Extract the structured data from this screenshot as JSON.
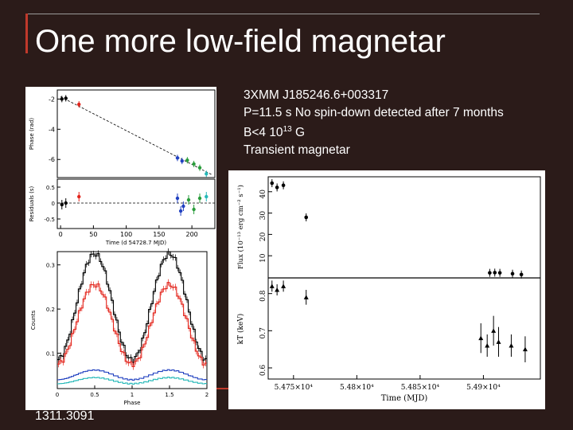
{
  "slide": {
    "title": "One more low-field magnetar",
    "info_lines": [
      "3XMM J185246.6+003317",
      "P=11.5 s No spin-down detected after 7 months",
      "B<4 10",
      "13",
      " G",
      "Transient magnetar"
    ],
    "reference": "1311.3091",
    "colors": {
      "background": "#2b1b19",
      "accent": "#c0392b",
      "text": "#ffffff"
    }
  },
  "chart_data": [
    {
      "type": "scatter",
      "panel": "timing",
      "ylabel_top": "Phase (rad)",
      "ylabel_bottom": "Residuals (s)",
      "xlabel": "Time (d    54728.7 MJD)",
      "x_ticks": [
        "0",
        "50",
        "100",
        "150",
        "200"
      ],
      "y_ticks_top": [
        "-2",
        "-4",
        "-6"
      ],
      "y_ticks_bottom": [
        "0.5",
        "0",
        "-0.5"
      ],
      "xlim": [
        -5,
        235
      ],
      "ylim_top": [
        -7.2,
        -1.4
      ],
      "ylim_bottom": [
        -0.8,
        0.75
      ],
      "trend_line": [
        [
          0,
          -1.85
        ],
        [
          230,
          -7.0
        ]
      ],
      "phase_series": [
        {
          "color": "#000000",
          "x": [
            2,
            8
          ],
          "y": [
            -2.0,
            -1.95
          ]
        },
        {
          "color": "#e3241b",
          "x": [
            28
          ],
          "y": [
            -2.35
          ]
        },
        {
          "color": "#2040c0",
          "x": [
            178,
            185
          ],
          "y": [
            -5.9,
            -6.1
          ]
        },
        {
          "color": "#2a9d3c",
          "x": [
            193,
            203,
            212
          ],
          "y": [
            -6.05,
            -6.3,
            -6.55
          ]
        },
        {
          "color": "#25b8b8",
          "x": [
            222
          ],
          "y": [
            -6.95
          ]
        }
      ],
      "residual_series": [
        {
          "color": "#000000",
          "x": [
            2,
            8
          ],
          "y": [
            -0.05,
            0.0
          ]
        },
        {
          "color": "#e3241b",
          "x": [
            28
          ],
          "y": [
            0.2
          ]
        },
        {
          "color": "#2040c0",
          "x": [
            178,
            183,
            187
          ],
          "y": [
            0.15,
            -0.25,
            -0.1
          ]
        },
        {
          "color": "#2a9d3c",
          "x": [
            195,
            203,
            212
          ],
          "y": [
            0.1,
            -0.2,
            0.15
          ]
        },
        {
          "color": "#25b8b8",
          "x": [
            222
          ],
          "y": [
            0.2
          ]
        }
      ]
    },
    {
      "type": "line",
      "panel": "pulse_profile",
      "xlabel": "Phase",
      "ylabel": "Counts",
      "x_ticks": [
        "0",
        "0.5",
        "1",
        "1.5",
        "2"
      ],
      "y_ticks": [
        "0.3",
        "0.2",
        "0.1"
      ],
      "xlim": [
        0,
        2
      ],
      "ylim": [
        0.02,
        0.33
      ],
      "series": [
        {
          "color": "#000000",
          "base": 0.085,
          "amp": 0.24
        },
        {
          "color": "#e3241b",
          "base": 0.075,
          "amp": 0.18
        },
        {
          "color": "#2040c0",
          "base": 0.04,
          "amp": 0.022
        },
        {
          "color": "#25b8b8",
          "base": 0.031,
          "amp": 0.014
        }
      ]
    },
    {
      "type": "scatter",
      "panel": "flux_kt",
      "xlabel": "Time (MJD)",
      "ylabel_top": "Flux (10⁻¹³ erg cm⁻² s⁻¹)",
      "ylabel_bottom": "kT (keV)",
      "x_ticks": [
        "5.475×10⁴",
        "5.48×10⁴",
        "5.485×10⁴",
        "5.49×10⁴"
      ],
      "x_tick_values": [
        54750,
        54800,
        54850,
        54900
      ],
      "y_ticks_top": [
        "40",
        "30",
        "20",
        "10"
      ],
      "y_ticks_bottom": [
        "0.8",
        "0.7",
        "0.6"
      ],
      "xlim": [
        54730,
        54945
      ],
      "ylim_top": [
        0,
        47
      ],
      "ylim_bottom": [
        0.57,
        0.84
      ],
      "flux": {
        "x": [
          54733,
          54737,
          54742,
          54760,
          54905,
          54909,
          54913,
          54923,
          54930
        ],
        "y": [
          44,
          42,
          43,
          28,
          2,
          2.1,
          2,
          1.6,
          1.2
        ]
      },
      "kt": {
        "x": [
          54733,
          54737,
          54742,
          54760,
          54898,
          54903,
          54908,
          54912,
          54922,
          54933
        ],
        "y": [
          0.82,
          0.81,
          0.82,
          0.79,
          0.68,
          0.66,
          0.7,
          0.67,
          0.66,
          0.65
        ],
        "err": [
          0.015,
          0.015,
          0.015,
          0.02,
          0.04,
          0.03,
          0.04,
          0.04,
          0.03,
          0.035
        ]
      }
    }
  ]
}
